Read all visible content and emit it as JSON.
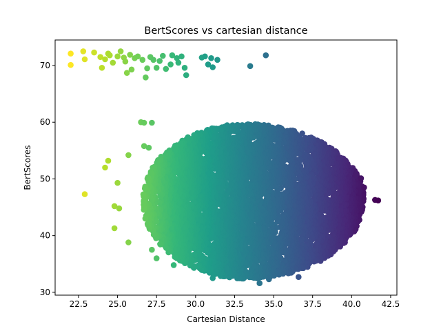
{
  "chart_data": {
    "type": "scatter",
    "title": "BertScores vs cartesian distance",
    "xlabel": "Cartesian Distance",
    "ylabel": "BertScores",
    "xlim": [
      21.0,
      42.9
    ],
    "ylim": [
      29.5,
      74.5
    ],
    "xticks": [
      "22.5",
      "25.0",
      "27.5",
      "30.0",
      "32.5",
      "35.0",
      "37.5",
      "40.0",
      "42.5"
    ],
    "xtick_values": [
      22.5,
      25.0,
      27.5,
      30.0,
      32.5,
      35.0,
      37.5,
      40.0,
      42.5
    ],
    "yticks": [
      "30",
      "40",
      "50",
      "60",
      "70"
    ],
    "ytick_values": [
      30,
      40,
      50,
      60,
      70
    ],
    "colormap": "viridis (reversed by distance: near = yellow, far = purple)",
    "grid": false,
    "legend": "none",
    "series": [
      {
        "description": "outlier points",
        "points": [
          [
            22.0,
            72.1
          ],
          [
            22.0,
            70.1
          ],
          [
            22.8,
            72.5
          ],
          [
            22.9,
            71.1
          ],
          [
            23.5,
            72.3
          ],
          [
            23.9,
            71.5
          ],
          [
            24.0,
            69.6
          ],
          [
            24.2,
            71.1
          ],
          [
            24.4,
            72.1
          ],
          [
            24.5,
            71.8
          ],
          [
            24.7,
            70.5
          ],
          [
            25.0,
            71.6
          ],
          [
            25.2,
            72.5
          ],
          [
            25.4,
            71.4
          ],
          [
            25.5,
            70.7
          ],
          [
            25.6,
            68.7
          ],
          [
            25.8,
            71.9
          ],
          [
            25.9,
            69.3
          ],
          [
            26.1,
            71.3
          ],
          [
            26.3,
            71.6
          ],
          [
            26.6,
            71.0
          ],
          [
            26.8,
            67.9
          ],
          [
            26.9,
            69.5
          ],
          [
            27.1,
            71.5
          ],
          [
            27.3,
            71.0
          ],
          [
            27.5,
            69.6
          ],
          [
            27.7,
            70.8
          ],
          [
            27.9,
            71.7
          ],
          [
            28.1,
            69.4
          ],
          [
            28.4,
            70.2
          ],
          [
            28.5,
            71.8
          ],
          [
            28.8,
            71.3
          ],
          [
            28.9,
            70.5
          ],
          [
            29.1,
            71.6
          ],
          [
            29.3,
            69.6
          ],
          [
            29.4,
            68.3
          ],
          [
            30.4,
            71.4
          ],
          [
            30.6,
            71.6
          ],
          [
            30.8,
            70.2
          ],
          [
            31.0,
            71.3
          ],
          [
            31.1,
            69.7
          ],
          [
            31.4,
            71.0
          ],
          [
            33.5,
            69.9
          ],
          [
            34.5,
            71.8
          ],
          [
            26.5,
            60.0
          ],
          [
            27.2,
            59.9
          ],
          [
            26.7,
            55.8
          ],
          [
            27.0,
            55.5
          ],
          [
            25.7,
            54.2
          ],
          [
            24.4,
            53.2
          ],
          [
            24.2,
            52.0
          ],
          [
            25.0,
            49.3
          ],
          [
            22.9,
            47.3
          ],
          [
            24.8,
            45.2
          ],
          [
            25.1,
            44.8
          ],
          [
            24.8,
            41.3
          ],
          [
            25.7,
            38.8
          ],
          [
            27.2,
            37.5
          ],
          [
            27.5,
            36.0
          ],
          [
            28.6,
            34.8
          ],
          [
            29.9,
            34.3
          ],
          [
            31.1,
            32.5
          ],
          [
            34.1,
            31.6
          ],
          [
            34.7,
            32.3
          ],
          [
            36.6,
            32.7
          ],
          [
            41.5,
            46.3
          ],
          [
            41.7,
            46.2
          ],
          [
            40.8,
            48.5
          ],
          [
            40.6,
            50.1
          ],
          [
            26.7,
            59.9
          ]
        ]
      },
      {
        "description": "dense cluster (approximate ellipse)",
        "cluster": {
          "x_range": [
            25.5,
            41.0
          ],
          "y_range": [
            32.0,
            60.5
          ],
          "center": [
            33.2,
            46.2
          ]
        }
      }
    ]
  }
}
